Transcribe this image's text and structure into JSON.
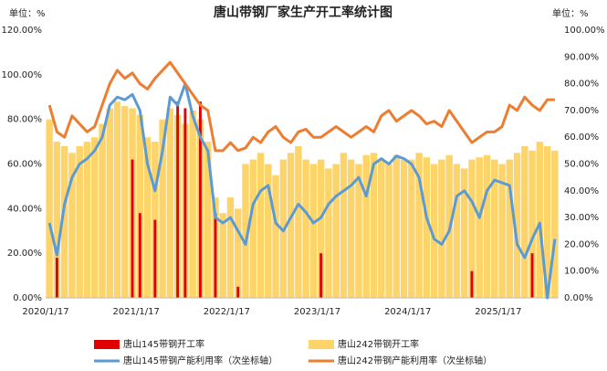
{
  "chart_data": {
    "type": "bar-line",
    "title": "唐山带钢厂家生产开工率统计图",
    "ylabel": "单位：%",
    "y2label": "单位：%",
    "categories": [
      "2020/1/17",
      null,
      null,
      null,
      null,
      null,
      null,
      null,
      null,
      null,
      null,
      null,
      "2021/1/17",
      null,
      null,
      null,
      null,
      null,
      null,
      null,
      null,
      null,
      null,
      null,
      "2022/1/17",
      null,
      null,
      null,
      null,
      null,
      null,
      null,
      null,
      null,
      null,
      null,
      "2023/1/17",
      null,
      null,
      null,
      null,
      null,
      null,
      null,
      null,
      null,
      null,
      null,
      "2024/1/17",
      null,
      null,
      null,
      null,
      null,
      null,
      null,
      null,
      null,
      null,
      null,
      "2025/1/17",
      null,
      null,
      null,
      null,
      null,
      null,
      null
    ],
    "series": [
      {
        "name": "唐山145带钢开工率",
        "kind": "bar",
        "color": "#e00000",
        "values": [
          0,
          18,
          0,
          0,
          0,
          0,
          0,
          0,
          0,
          0,
          0,
          62,
          38,
          0,
          35,
          0,
          0,
          88,
          85,
          0,
          88,
          0,
          38,
          0,
          0,
          5,
          0,
          0,
          0,
          0,
          0,
          0,
          0,
          0,
          0,
          0,
          20,
          0,
          0,
          0,
          0,
          0,
          0,
          0,
          0,
          0,
          0,
          0,
          0,
          0,
          0,
          0,
          0,
          0,
          0,
          0,
          12,
          0,
          0,
          0,
          0,
          0,
          0,
          0,
          20,
          0,
          0,
          0
        ]
      },
      {
        "name": "唐山242带钢开工率",
        "kind": "bar",
        "color": "#fdd46a",
        "values": [
          80,
          70,
          68,
          65,
          68,
          70,
          72,
          78,
          85,
          88,
          86,
          85,
          82,
          72,
          70,
          80,
          85,
          82,
          78,
          84,
          80,
          70,
          45,
          38,
          45,
          40,
          60,
          62,
          65,
          60,
          55,
          62,
          65,
          68,
          62,
          60,
          62,
          58,
          60,
          65,
          62,
          60,
          64,
          65,
          62,
          60,
          64,
          62,
          62,
          65,
          63,
          60,
          62,
          64,
          60,
          58,
          62,
          63,
          64,
          62,
          60,
          62,
          65,
          68,
          66,
          70,
          68,
          66
        ]
      },
      {
        "name": "唐山145带钢产能利用率（次坐标轴）",
        "kind": "line",
        "axis": "y2",
        "color": "#5b9bd5",
        "values": [
          28,
          16,
          35,
          45,
          50,
          52,
          55,
          60,
          72,
          75,
          74,
          76,
          70,
          50,
          40,
          55,
          75,
          72,
          80,
          68,
          60,
          55,
          30,
          28,
          30,
          25,
          20,
          35,
          40,
          42,
          28,
          25,
          30,
          35,
          32,
          28,
          30,
          35,
          38,
          40,
          42,
          45,
          38,
          50,
          52,
          50,
          53,
          52,
          50,
          45,
          30,
          22,
          20,
          25,
          38,
          40,
          36,
          30,
          40,
          44,
          43,
          42,
          20,
          15,
          22,
          28,
          0,
          22
        ]
      },
      {
        "name": "唐山242带钢产能利用率（次坐标轴）",
        "kind": "line",
        "axis": "y2",
        "color": "#ed7d31",
        "values": [
          72,
          62,
          60,
          68,
          65,
          62,
          64,
          72,
          80,
          85,
          82,
          84,
          80,
          78,
          82,
          85,
          88,
          84,
          80,
          76,
          72,
          70,
          55,
          55,
          58,
          55,
          56,
          60,
          58,
          62,
          64,
          60,
          58,
          62,
          63,
          60,
          60,
          62,
          64,
          62,
          60,
          62,
          64,
          62,
          68,
          70,
          66,
          68,
          70,
          68,
          65,
          66,
          64,
          70,
          66,
          62,
          58,
          60,
          62,
          62,
          64,
          72,
          70,
          75,
          72,
          70,
          74,
          74
        ]
      }
    ],
    "ylim": [
      0,
      120
    ],
    "yticks": [
      {
        "value": 0,
        "label": "0.00%"
      },
      {
        "value": 20,
        "label": "20.00%"
      },
      {
        "value": 40,
        "label": "40.00%"
      },
      {
        "value": 60,
        "label": "60.00%"
      },
      {
        "value": 80,
        "label": "80.00%"
      },
      {
        "value": 100,
        "label": "100.00%"
      },
      {
        "value": 120,
        "label": "120.00%"
      }
    ],
    "y2lim": [
      0,
      100
    ],
    "y2ticks": [
      {
        "value": 0,
        "label": "0.00%"
      },
      {
        "value": 10,
        "label": "10.00%"
      },
      {
        "value": 20,
        "label": "20.00%"
      },
      {
        "value": 30,
        "label": "30.00%"
      },
      {
        "value": 40,
        "label": "40.00%"
      },
      {
        "value": 50,
        "label": "50.00%"
      },
      {
        "value": 60,
        "label": "60.00%"
      },
      {
        "value": 70,
        "label": "70.00%"
      },
      {
        "value": 80,
        "label": "80.00%"
      },
      {
        "value": 90,
        "label": "90.00%"
      },
      {
        "value": 100,
        "label": "100.00%"
      }
    ],
    "grid": false
  }
}
